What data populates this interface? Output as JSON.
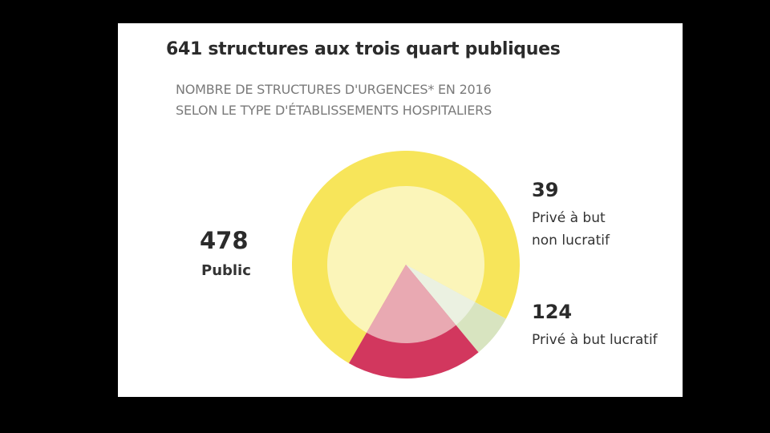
{
  "chart_data": {
    "type": "pie",
    "title": "641 structures aux trois quart publiques",
    "subtitle_lines": [
      "NOMBRE DE STRUCTURES D'URGENCES* EN 2016",
      "SELON LE TYPE D'ÉTABLISSEMENTS HOSPITALIERS"
    ],
    "total": 641,
    "slices": [
      {
        "value": 478,
        "value_label": "478",
        "label_lines": [
          "Public"
        ],
        "outer_color": "#f7e55a",
        "inner_color": "#fbf5b9"
      },
      {
        "value": 39,
        "value_label": "39",
        "label_lines": [
          "Privé à but",
          "non lucratif"
        ],
        "outer_color": "#d8e4c0",
        "inner_color": "#ebf1e1"
      },
      {
        "value": 124,
        "value_label": "124",
        "label_lines": [
          "Privé à but lucratif"
        ],
        "outer_color": "#d2375e",
        "inner_color": "#e9a9b2"
      }
    ]
  }
}
